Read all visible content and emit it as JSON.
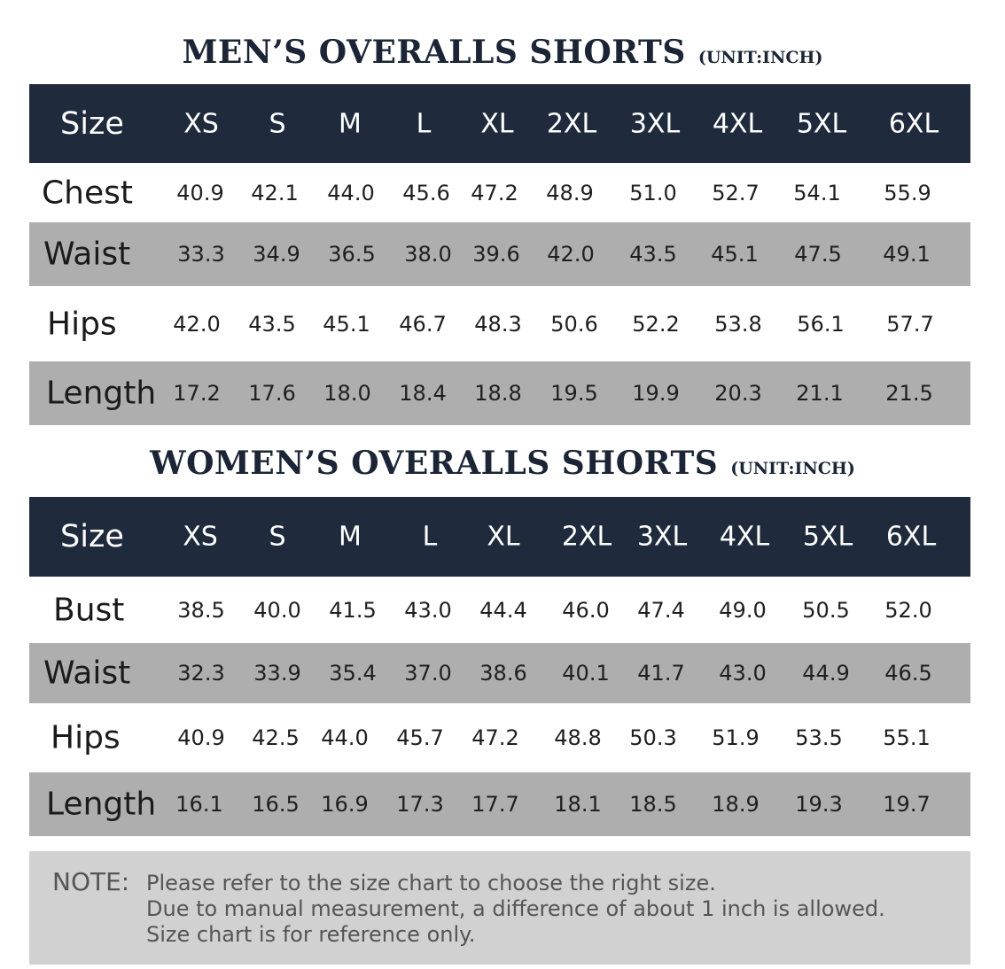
{
  "men": {
    "title": "MEN’S OVERALLS SHORTS",
    "unit": "(UNIT:INCH)",
    "header_label": "Size",
    "sizes": [
      "XS",
      "S",
      "M",
      "L",
      "XL",
      "2XL",
      "3XL",
      "4XL",
      "5XL",
      "6XL"
    ],
    "rows": [
      {
        "label": "Chest",
        "values": [
          "40.9",
          "42.1",
          "44.0",
          "45.6",
          "47.2",
          "48.9",
          "51.0",
          "52.7",
          "54.1",
          "55.9"
        ]
      },
      {
        "label": "Waist",
        "values": [
          "33.3",
          "34.9",
          "36.5",
          "38.0",
          "39.6",
          "42.0",
          "43.5",
          "45.1",
          "47.5",
          "49.1"
        ]
      },
      {
        "label": "Hips",
        "values": [
          "42.0",
          "43.5",
          "45.1",
          "46.7",
          "48.3",
          "50.6",
          "52.2",
          "53.8",
          "56.1",
          "57.7"
        ]
      },
      {
        "label": "Length",
        "values": [
          "17.2",
          "17.6",
          "18.0",
          "18.4",
          "18.8",
          "19.5",
          "19.9",
          "20.3",
          "21.1",
          "21.5"
        ]
      }
    ]
  },
  "women": {
    "title": "WOMEN’S OVERALLS SHORTS",
    "unit": "(UNIT:INCH)",
    "header_label": "Size",
    "sizes": [
      "XS",
      "S",
      "M",
      "L",
      "XL",
      "2XL",
      "3XL",
      "4XL",
      "5XL",
      "6XL"
    ],
    "rows": [
      {
        "label": "Bust",
        "values": [
          "38.5",
          "40.0",
          "41.5",
          "43.0",
          "44.4",
          "46.0",
          "47.4",
          "49.0",
          "50.5",
          "52.0"
        ]
      },
      {
        "label": "Waist",
        "values": [
          "32.3",
          "33.9",
          "35.4",
          "37.0",
          "38.6",
          "40.1",
          "41.7",
          "43.0",
          "44.9",
          "46.5"
        ]
      },
      {
        "label": "Hips",
        "values": [
          "40.9",
          "42.5",
          "44.0",
          "45.7",
          "47.2",
          "48.8",
          "50.3",
          "51.9",
          "53.5",
          "55.1"
        ]
      },
      {
        "label": "Length",
        "values": [
          "16.1",
          "16.5",
          "16.9",
          "17.3",
          "17.7",
          "18.1",
          "18.5",
          "18.9",
          "19.3",
          "19.7"
        ]
      }
    ]
  },
  "note": {
    "label": "NOTE:",
    "lines": [
      "Please refer to the size chart to choose the right size.",
      "Due to manual measurement, a difference of about 1 inch is allowed.",
      "Size chart is for reference only."
    ]
  },
  "colors": {
    "header_bg": "#1f2b3d",
    "stripe": "#aeaeae",
    "note_bg": "#d1d1d1",
    "title": "#1b2535"
  }
}
